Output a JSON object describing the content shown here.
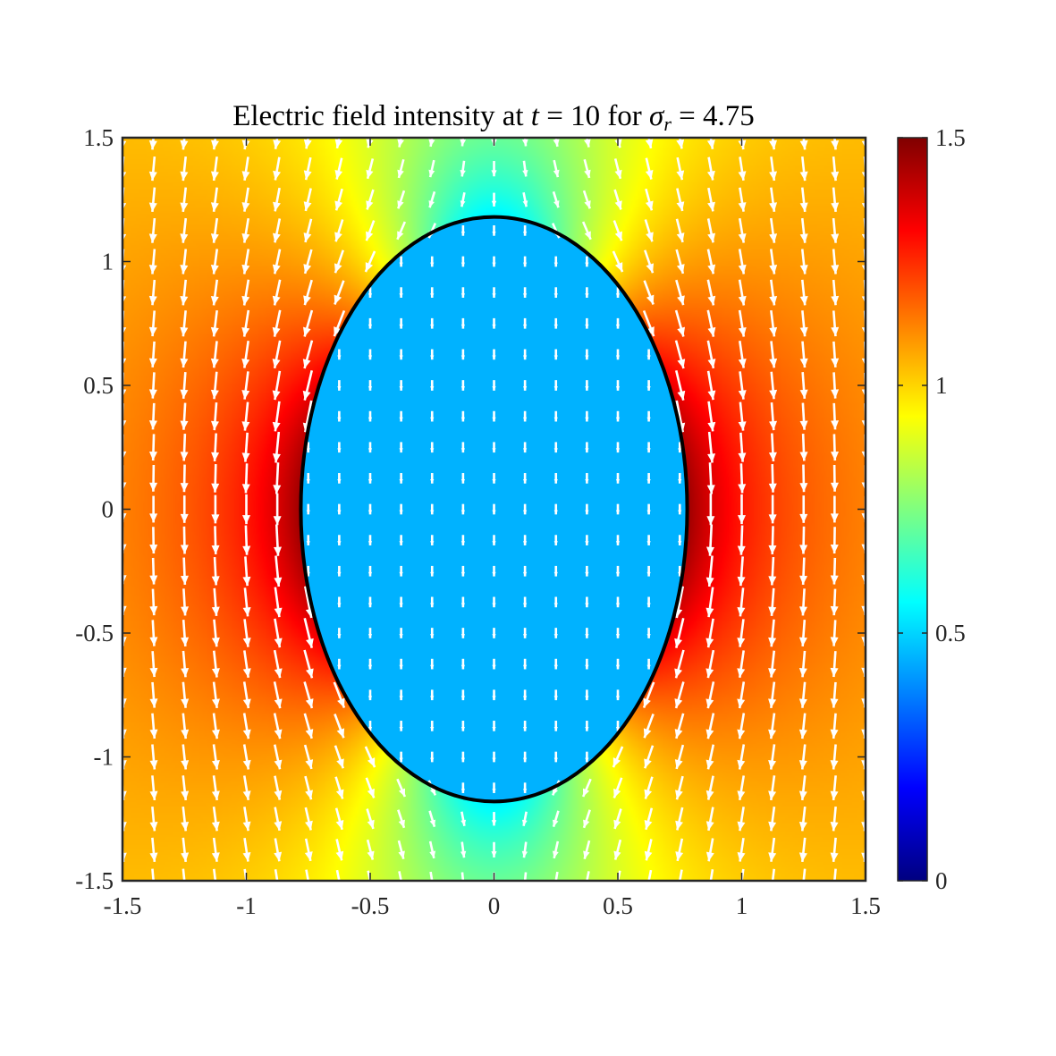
{
  "chart_data": {
    "type": "heatmap",
    "subtype": "field intensity map with quiver arrows and ellipse boundary",
    "title": {
      "prefix": "Electric field intensity at ",
      "var_t": "t",
      "eq1": " = 10 for ",
      "var_sigma": "σ",
      "sub_r": "r",
      "eq2": " = 4.75"
    },
    "xlim": [
      -1.5,
      1.5
    ],
    "ylim": [
      -1.5,
      1.5
    ],
    "x_ticks": [
      -1.5,
      -1,
      -0.5,
      0,
      0.5,
      1,
      1.5
    ],
    "x_tick_labels": [
      "-1.5",
      "-1",
      "-0.5",
      "0",
      "0.5",
      "1",
      "1.5"
    ],
    "y_ticks": [
      1.5,
      1,
      0.5,
      0,
      -0.5,
      -1,
      -1.5
    ],
    "y_tick_labels": [
      "1.5",
      "1",
      "0.5",
      "0",
      "-0.5",
      "-1",
      "-1.5"
    ],
    "colorbar": {
      "colormap": "jet",
      "limits": [
        0,
        1.5
      ],
      "ticks": [
        1.5,
        1,
        0.5,
        0
      ],
      "tick_labels": [
        "1.5",
        "1",
        "0.5",
        "0"
      ]
    },
    "ellipse": {
      "center": [
        0,
        0
      ],
      "semi_axis_x": 0.78,
      "semi_axis_y": 1.18,
      "color": "#000000"
    },
    "field_model": {
      "uniform_field_magnitude": 1.0,
      "inside_intensity": 0.45,
      "field_direction": "negative y",
      "peak_intensity_at_poles": 1.5
    },
    "arrow_color": "#ffffff",
    "grid": false
  }
}
